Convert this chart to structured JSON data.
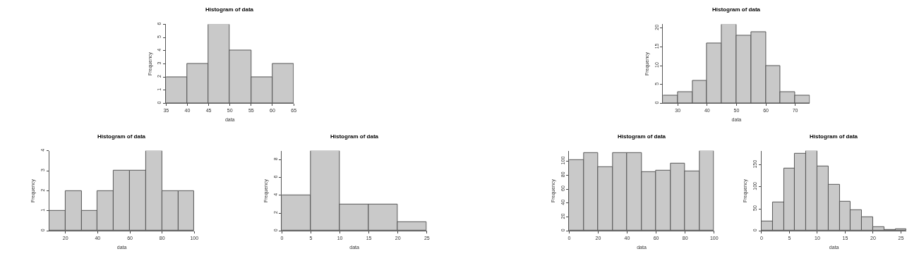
{
  "chart_data": [
    {
      "type": "histogram",
      "title": "Histogram of data",
      "xlabel": "data",
      "ylabel": "Frequency",
      "color": "#c9c9c9",
      "bins": [
        35,
        40,
        45,
        50,
        55,
        60,
        65
      ],
      "values": [
        2,
        3,
        6,
        4,
        2,
        3
      ],
      "xlim": [
        35,
        65
      ],
      "xticks": [
        35,
        40,
        45,
        50,
        55,
        60,
        65
      ],
      "ylim": [
        0,
        6
      ],
      "yticks": [
        0,
        1,
        2,
        3,
        4,
        5,
        6
      ]
    },
    {
      "type": "histogram",
      "title": "Histogram of data",
      "xlabel": "data",
      "ylabel": "Frequency",
      "color": "#c9c9c9",
      "bins": [
        25,
        30,
        35,
        40,
        45,
        50,
        55,
        60,
        65,
        70,
        75
      ],
      "values": [
        2,
        3,
        6,
        16,
        21,
        18,
        19,
        10,
        3,
        2
      ],
      "xlim": [
        25,
        75
      ],
      "xticks": [
        30,
        40,
        50,
        60,
        70
      ],
      "ylim": [
        0,
        21
      ],
      "yticks": [
        0,
        5,
        10,
        15,
        20
      ]
    },
    {
      "type": "histogram",
      "title": "Histogram of data",
      "xlabel": "data",
      "ylabel": "Frequency",
      "color": "#c9c9c9",
      "bins": [
        10,
        20,
        30,
        40,
        50,
        60,
        70,
        80,
        90,
        100
      ],
      "values": [
        1,
        2,
        1,
        2,
        3,
        3,
        4,
        2,
        2
      ],
      "xlim": [
        10,
        100
      ],
      "xticks": [
        20,
        40,
        60,
        80,
        100
      ],
      "ylim": [
        0,
        4
      ],
      "yticks": [
        0,
        1,
        2,
        3,
        4
      ]
    },
    {
      "type": "histogram",
      "title": "Histogram of data",
      "xlabel": "data",
      "ylabel": "Frequency",
      "color": "#c9c9c9",
      "bins": [
        0,
        5,
        10,
        15,
        20,
        25
      ],
      "values": [
        4,
        9,
        3,
        3,
        1
      ],
      "xlim": [
        0,
        25
      ],
      "xticks": [
        0,
        5,
        10,
        15,
        20,
        25
      ],
      "ylim": [
        0,
        9
      ],
      "yticks": [
        0,
        2,
        4,
        6,
        8
      ]
    },
    {
      "type": "histogram",
      "title": "Histogram of data",
      "xlabel": "data",
      "ylabel": "Frequency",
      "color": "#c9c9c9",
      "bins": [
        0,
        10,
        20,
        30,
        40,
        50,
        60,
        70,
        80,
        90,
        100
      ],
      "values": [
        102,
        112,
        92,
        112,
        112,
        85,
        87,
        97,
        86,
        115
      ],
      "xlim": [
        0,
        100
      ],
      "xticks": [
        0,
        20,
        40,
        60,
        80,
        100
      ],
      "ylim": [
        0,
        115
      ],
      "yticks": [
        0,
        20,
        40,
        60,
        80,
        100
      ]
    },
    {
      "type": "histogram",
      "title": "Histogram of data",
      "xlabel": "data",
      "ylabel": "Frequency",
      "color": "#c9c9c9",
      "bins": [
        0,
        2,
        4,
        6,
        8,
        10,
        12,
        14,
        16,
        18,
        20,
        22,
        24,
        26
      ],
      "values": [
        22,
        65,
        142,
        175,
        182,
        147,
        105,
        67,
        47,
        31,
        8,
        2,
        4
      ],
      "xlim": [
        0,
        26
      ],
      "xticks": [
        0,
        5,
        10,
        15,
        20,
        25
      ],
      "ylim": [
        0,
        182
      ],
      "yticks": [
        0,
        50,
        100,
        150
      ]
    }
  ]
}
